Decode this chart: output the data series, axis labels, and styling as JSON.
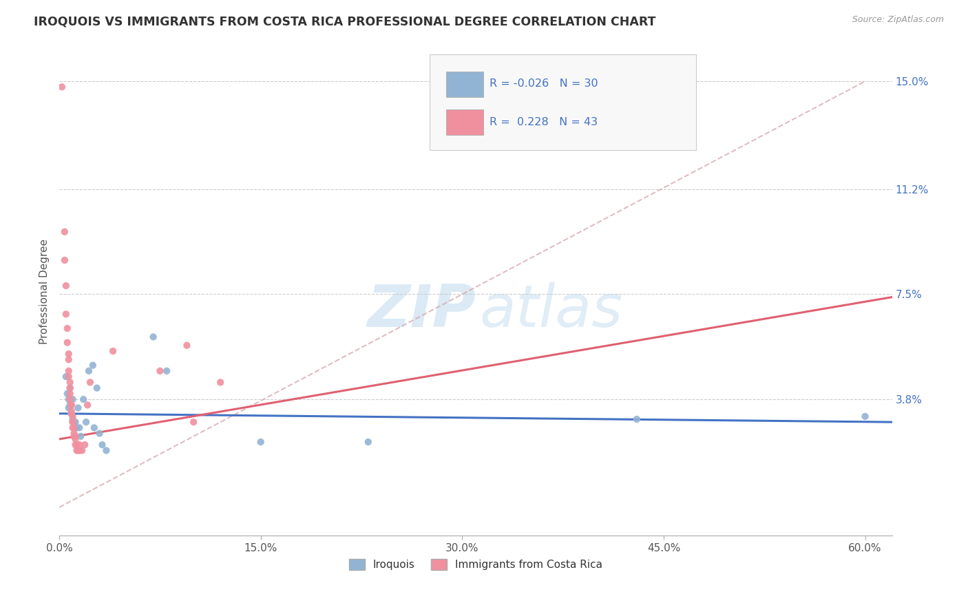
{
  "title": "IROQUOIS VS IMMIGRANTS FROM COSTA RICA PROFESSIONAL DEGREE CORRELATION CHART",
  "source": "Source: ZipAtlas.com",
  "xlabel_ticks": [
    "0.0%",
    "15.0%",
    "30.0%",
    "45.0%",
    "60.0%"
  ],
  "xlabel_vals": [
    0.0,
    0.15,
    0.3,
    0.45,
    0.6
  ],
  "ylabel": "Professional Degree",
  "ylabel_ticks_labels": [
    "3.8%",
    "7.5%",
    "11.2%",
    "15.0%"
  ],
  "ylabel_ticks_vals": [
    0.038,
    0.075,
    0.112,
    0.15
  ],
  "xlim": [
    0.0,
    0.62
  ],
  "ylim": [
    -0.01,
    0.162
  ],
  "legend_r_blue": "-0.026",
  "legend_n_blue": "30",
  "legend_r_pink": "0.228",
  "legend_n_pink": "43",
  "legend_label_blue": "Iroquois",
  "legend_label_pink": "Immigrants from Costa Rica",
  "watermark_zip": "ZIP",
  "watermark_atlas": "atlas",
  "blue_color": "#92b4d4",
  "pink_color": "#f0909f",
  "blue_scatter": [
    [
      0.005,
      0.046
    ],
    [
      0.006,
      0.04
    ],
    [
      0.007,
      0.038
    ],
    [
      0.007,
      0.035
    ],
    [
      0.008,
      0.042
    ],
    [
      0.008,
      0.036
    ],
    [
      0.009,
      0.033
    ],
    [
      0.01,
      0.038
    ],
    [
      0.01,
      0.031
    ],
    [
      0.011,
      0.03
    ],
    [
      0.012,
      0.03
    ],
    [
      0.013,
      0.028
    ],
    [
      0.014,
      0.035
    ],
    [
      0.015,
      0.028
    ],
    [
      0.016,
      0.025
    ],
    [
      0.018,
      0.038
    ],
    [
      0.02,
      0.03
    ],
    [
      0.022,
      0.048
    ],
    [
      0.025,
      0.05
    ],
    [
      0.026,
      0.028
    ],
    [
      0.028,
      0.042
    ],
    [
      0.03,
      0.026
    ],
    [
      0.032,
      0.022
    ],
    [
      0.035,
      0.02
    ],
    [
      0.07,
      0.06
    ],
    [
      0.08,
      0.048
    ],
    [
      0.15,
      0.023
    ],
    [
      0.23,
      0.023
    ],
    [
      0.43,
      0.031
    ],
    [
      0.6,
      0.032
    ]
  ],
  "pink_scatter": [
    [
      0.002,
      0.148
    ],
    [
      0.004,
      0.097
    ],
    [
      0.004,
      0.087
    ],
    [
      0.005,
      0.078
    ],
    [
      0.005,
      0.068
    ],
    [
      0.006,
      0.063
    ],
    [
      0.006,
      0.058
    ],
    [
      0.007,
      0.054
    ],
    [
      0.007,
      0.052
    ],
    [
      0.007,
      0.048
    ],
    [
      0.007,
      0.046
    ],
    [
      0.008,
      0.044
    ],
    [
      0.008,
      0.042
    ],
    [
      0.008,
      0.04
    ],
    [
      0.008,
      0.038
    ],
    [
      0.009,
      0.036
    ],
    [
      0.009,
      0.036
    ],
    [
      0.009,
      0.034
    ],
    [
      0.009,
      0.033
    ],
    [
      0.01,
      0.032
    ],
    [
      0.01,
      0.03
    ],
    [
      0.01,
      0.03
    ],
    [
      0.01,
      0.028
    ],
    [
      0.011,
      0.028
    ],
    [
      0.011,
      0.026
    ],
    [
      0.011,
      0.025
    ],
    [
      0.012,
      0.025
    ],
    [
      0.012,
      0.024
    ],
    [
      0.012,
      0.022
    ],
    [
      0.013,
      0.022
    ],
    [
      0.013,
      0.02
    ],
    [
      0.014,
      0.02
    ],
    [
      0.015,
      0.02
    ],
    [
      0.015,
      0.022
    ],
    [
      0.017,
      0.02
    ],
    [
      0.019,
      0.022
    ],
    [
      0.021,
      0.036
    ],
    [
      0.023,
      0.044
    ],
    [
      0.04,
      0.055
    ],
    [
      0.075,
      0.048
    ],
    [
      0.095,
      0.057
    ],
    [
      0.1,
      0.03
    ],
    [
      0.12,
      0.044
    ]
  ],
  "blue_line_x": [
    0.0,
    0.62
  ],
  "blue_line_y": [
    0.033,
    0.03
  ],
  "pink_line_x": [
    0.0,
    0.62
  ],
  "pink_line_y": [
    0.024,
    0.074
  ],
  "diag_line_x": [
    0.0,
    0.6
  ],
  "diag_line_y": [
    0.0,
    0.15
  ]
}
